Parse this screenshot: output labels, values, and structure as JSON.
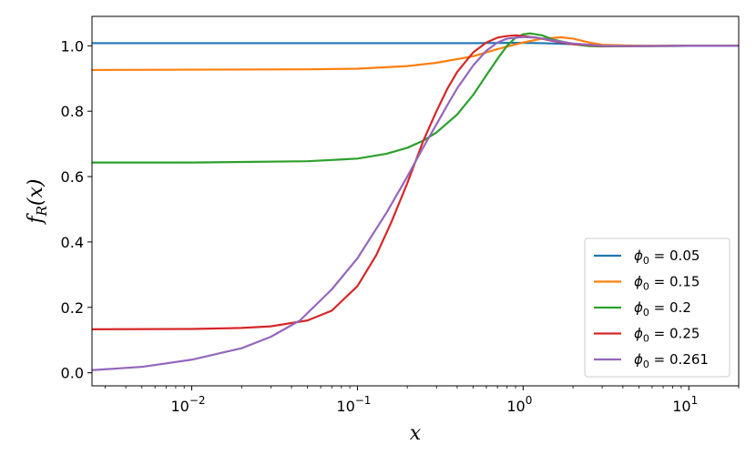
{
  "chart_data": {
    "type": "line",
    "xlabel": "x",
    "ylabel": "f_R(x)",
    "xscale": "log",
    "xlim": [
      0.0025,
      20
    ],
    "ylim": [
      -0.04,
      1.09
    ],
    "xticks": [
      {
        "value": 0.01,
        "base": "10",
        "exp": "−2"
      },
      {
        "value": 0.1,
        "base": "10",
        "exp": "−1"
      },
      {
        "value": 1,
        "base": "10",
        "exp": "0"
      },
      {
        "value": 10,
        "base": "10",
        "exp": "1"
      }
    ],
    "yticks": [
      {
        "value": 0.0,
        "label": "0.0"
      },
      {
        "value": 0.2,
        "label": "0.2"
      },
      {
        "value": 0.4,
        "label": "0.4"
      },
      {
        "value": 0.6,
        "label": "0.6"
      },
      {
        "value": 0.8,
        "label": "0.8"
      },
      {
        "value": 1.0,
        "label": "1.0"
      }
    ],
    "grid": false,
    "legend_position": "bottom-right",
    "series": [
      {
        "name": "ϕ0 = 0.05",
        "name_sub": "0",
        "name_value": "0.05",
        "color": "#1f77b4",
        "x": [
          0.0025,
          0.01,
          0.1,
          0.3,
          0.5,
          0.8,
          1.0,
          1.3,
          2.0,
          3.0,
          5.0,
          10.0,
          20.0
        ],
        "y": [
          1.008,
          1.008,
          1.008,
          1.008,
          1.008,
          1.009,
          1.009,
          1.008,
          1.005,
          1.002,
          1.0,
          1.0,
          1.0
        ]
      },
      {
        "name": "ϕ0 = 0.15",
        "name_sub": "0",
        "name_value": "0.15",
        "color": "#ff7f0e",
        "x": [
          0.0025,
          0.01,
          0.05,
          0.1,
          0.2,
          0.3,
          0.5,
          0.7,
          1.0,
          1.3,
          1.7,
          2.0,
          2.5,
          3.0,
          5.0,
          10.0,
          20.0
        ],
        "y": [
          0.926,
          0.927,
          0.928,
          0.93,
          0.938,
          0.948,
          0.968,
          0.99,
          1.01,
          1.022,
          1.026,
          1.022,
          1.01,
          1.003,
          1.0,
          1.0,
          1.0
        ]
      },
      {
        "name": "ϕ0 = 0.2",
        "name_sub": "0",
        "name_value": "0.2",
        "color": "#2ca02c",
        "x": [
          0.0025,
          0.01,
          0.05,
          0.1,
          0.15,
          0.2,
          0.25,
          0.3,
          0.4,
          0.5,
          0.6,
          0.7,
          0.8,
          0.9,
          1.0,
          1.1,
          1.3,
          1.5,
          2.0,
          2.5,
          3.0,
          5.0,
          10.0,
          20.0
        ],
        "y": [
          0.643,
          0.643,
          0.647,
          0.655,
          0.67,
          0.688,
          0.71,
          0.735,
          0.79,
          0.85,
          0.91,
          0.96,
          1.0,
          1.025,
          1.035,
          1.038,
          1.032,
          1.02,
          1.005,
          0.999,
          0.998,
          0.999,
          1.0,
          1.0
        ]
      },
      {
        "name": "ϕ0 = 0.25",
        "name_sub": "0",
        "name_value": "0.25",
        "color": "#d62728",
        "x": [
          0.0025,
          0.01,
          0.02,
          0.03,
          0.05,
          0.07,
          0.1,
          0.13,
          0.16,
          0.2,
          0.25,
          0.3,
          0.35,
          0.4,
          0.5,
          0.6,
          0.7,
          0.8,
          0.9,
          1.0,
          1.2,
          1.5,
          2.0,
          3.0,
          5.0,
          10.0,
          20.0
        ],
        "y": [
          0.133,
          0.134,
          0.137,
          0.142,
          0.16,
          0.19,
          0.265,
          0.36,
          0.46,
          0.58,
          0.71,
          0.8,
          0.87,
          0.92,
          0.98,
          1.01,
          1.025,
          1.03,
          1.032,
          1.03,
          1.025,
          1.015,
          1.005,
          0.999,
          0.999,
          1.0,
          1.0
        ]
      },
      {
        "name": "ϕ0 = 0.261",
        "name_sub": "0",
        "name_value": "0.261",
        "color": "#9467bd",
        "x": [
          0.0025,
          0.005,
          0.01,
          0.02,
          0.03,
          0.045,
          0.07,
          0.1,
          0.15,
          0.2,
          0.25,
          0.3,
          0.35,
          0.4,
          0.5,
          0.6,
          0.7,
          0.8,
          1.0,
          1.2,
          1.5,
          2.0,
          3.0,
          5.0,
          10.0,
          20.0
        ],
        "y": [
          0.008,
          0.018,
          0.04,
          0.075,
          0.11,
          0.16,
          0.255,
          0.35,
          0.49,
          0.6,
          0.69,
          0.76,
          0.82,
          0.87,
          0.94,
          0.985,
          1.01,
          1.022,
          1.027,
          1.025,
          1.017,
          1.007,
          1.0,
          0.999,
          1.0,
          1.0
        ]
      }
    ]
  }
}
